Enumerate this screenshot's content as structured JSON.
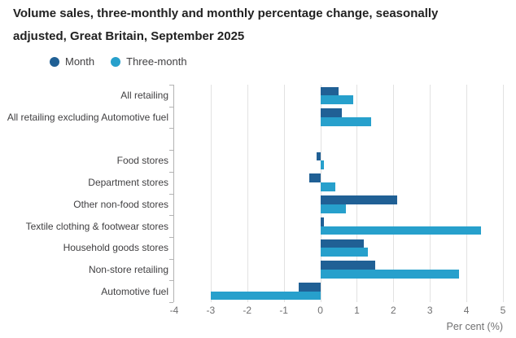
{
  "title": "Volume sales, three-monthly and monthly percentage change, seasonally adjusted, Great Britain, September 2025",
  "title_lines": [
    "Volume sales, three-monthly and monthly percentage change, seasonally",
    "adjusted, Great Britain, September 2025"
  ],
  "legend": [
    {
      "label": "Month",
      "color": "#206095"
    },
    {
      "label": "Three-month",
      "color": "#27a0cc"
    }
  ],
  "chart_data": {
    "type": "bar",
    "orientation": "horizontal",
    "title": "Volume sales, three-monthly and monthly percentage change, seasonally adjusted, Great Britain, September 2025",
    "categories": [
      "All retailing",
      "All retailing excluding Automotive fuel",
      "Food stores",
      "Department stores",
      "Other non-food stores",
      "Textile clothing & footwear stores",
      "Household goods stores",
      "Non-store retailing",
      "Automotive fuel"
    ],
    "series": [
      {
        "name": "Month",
        "color": "#206095",
        "values": [
          0.5,
          0.6,
          -0.1,
          -0.3,
          2.1,
          0.1,
          1.2,
          1.5,
          -0.6
        ]
      },
      {
        "name": "Three-month",
        "color": "#27a0cc",
        "values": [
          0.9,
          1.4,
          0.1,
          0.4,
          0.7,
          4.4,
          1.3,
          3.8,
          -3.0
        ]
      }
    ],
    "xlabel": "Per cent (%)",
    "xlim": [
      -4,
      5
    ],
    "x_ticks": [
      -4,
      -3,
      -2,
      -1,
      0,
      1,
      2,
      3,
      4,
      5
    ],
    "grid": "vertical",
    "legend_position": "top-left",
    "group_gap_after_category_index": 1
  },
  "palette": {
    "title_text": "#222222",
    "category_label_text": "#414042",
    "tick_label_text": "#707071",
    "gridline": "#e2e2e2",
    "axis": "#b3b3b3",
    "background": "#ffffff"
  }
}
